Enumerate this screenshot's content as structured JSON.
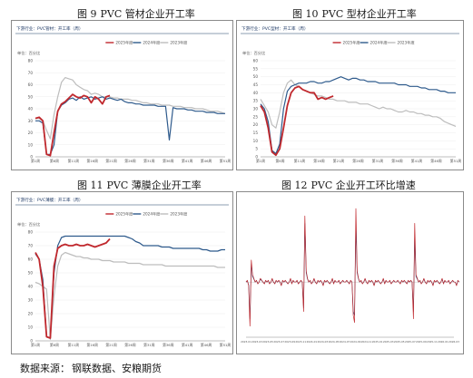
{
  "captions": [
    {
      "fig": "图 9",
      "title": "PVC 管材企业开工率"
    },
    {
      "fig": "图 10",
      "title": "PVC 型材企业开工率"
    },
    {
      "fig": "图 11",
      "title": "PVC 薄膜企业开工率"
    },
    {
      "fig": "图 12",
      "title": "PVC 企业开工环比增速"
    }
  ],
  "source": {
    "label": "数据来源：",
    "text": "钢联数据、安粮期货"
  },
  "watermark": "",
  "colors": {
    "y2025": "#c0282d",
    "y2024": "#2e5a8c",
    "y2023": "#bdbdbd"
  },
  "chart_data": [
    {
      "type": "line",
      "header": "下游行业：PVC管材：开工率（周）",
      "ylabel": "单位：百分比",
      "ylim": [
        0,
        80
      ],
      "yticks": [
        "80",
        "70",
        "60",
        "50",
        "40",
        "30",
        "20",
        "10",
        "0"
      ],
      "xticks": [
        "第1周",
        "第6周",
        "第11周",
        "第16周",
        "第21周",
        "第26周",
        "第31周",
        "第36周",
        "第41周",
        "第46周",
        "第51周"
      ],
      "xmax": 52,
      "series": [
        {
          "name": "2025年度",
          "color": "y2025",
          "values": [
            32,
            33,
            30,
            2,
            1,
            20,
            38,
            44,
            46,
            49,
            52,
            50,
            49,
            51,
            50,
            45,
            50,
            48,
            44,
            50,
            51
          ]
        },
        {
          "name": "2024年度",
          "color": "y2024",
          "values": [
            30,
            30,
            28,
            2,
            2,
            10,
            38,
            43,
            45,
            48,
            49,
            47,
            50,
            48,
            49,
            50,
            48,
            49,
            50,
            48,
            49,
            48,
            47,
            48,
            46,
            45,
            45,
            44,
            44,
            43,
            43,
            43,
            43,
            42,
            42,
            42,
            14,
            41,
            40,
            40,
            40,
            39,
            39,
            38,
            38,
            38,
            37,
            37,
            37,
            36,
            36,
            36
          ]
        },
        {
          "name": "2023年度",
          "color": "y2023",
          "values": [
            32,
            32,
            30,
            22,
            15,
            35,
            50,
            62,
            66,
            65,
            64,
            60,
            58,
            56,
            55,
            52,
            53,
            52,
            50,
            50,
            50,
            49,
            49,
            48,
            48,
            48,
            47,
            47,
            46,
            45,
            45,
            44,
            44,
            44,
            43,
            43,
            43,
            42,
            42,
            42,
            41,
            41,
            41,
            40,
            40,
            40,
            39,
            38,
            38,
            38,
            37,
            36
          ]
        }
      ]
    },
    {
      "type": "line",
      "header": "下游行业：PVC型材：开工率（周）",
      "ylabel": "单位：百分比",
      "ylim": [
        0,
        60
      ],
      "yticks": [
        "60",
        "55",
        "50",
        "45",
        "40",
        "35",
        "30",
        "25",
        "20",
        "15",
        "10",
        "5",
        "0"
      ],
      "xticks": [
        "第1周",
        "第6周",
        "第11周",
        "第16周",
        "第21周",
        "第26周",
        "第31周",
        "第36周",
        "第41周",
        "第46周",
        "第51周"
      ],
      "xmax": 52,
      "series": [
        {
          "name": "2025年度",
          "color": "y2025",
          "values": [
            32,
            28,
            18,
            3,
            1,
            5,
            18,
            32,
            40,
            43,
            44,
            42,
            41,
            40,
            40,
            36,
            37,
            36,
            37,
            38
          ]
        },
        {
          "name": "2024年度",
          "color": "y2024",
          "values": [
            33,
            30,
            22,
            4,
            2,
            8,
            30,
            41,
            44,
            45,
            46,
            46,
            46,
            47,
            47,
            46,
            46,
            47,
            47,
            48,
            49,
            50,
            49,
            48,
            49,
            49,
            48,
            48,
            47,
            47,
            47,
            46,
            46,
            46,
            46,
            46,
            45,
            45,
            45,
            44,
            44,
            44,
            43,
            43,
            42,
            42,
            42,
            41,
            41,
            40,
            40,
            40
          ]
        },
        {
          "name": "2023年度",
          "color": "y2023",
          "values": [
            36,
            32,
            28,
            20,
            18,
            28,
            40,
            46,
            48,
            45,
            44,
            42,
            41,
            40,
            39,
            38,
            38,
            37,
            36,
            36,
            35,
            35,
            35,
            34,
            34,
            34,
            33,
            33,
            33,
            32,
            31,
            30,
            31,
            30,
            30,
            29,
            28,
            28,
            29,
            28,
            28,
            27,
            27,
            26,
            26,
            25,
            25,
            24,
            22,
            21,
            20,
            19
          ]
        }
      ]
    },
    {
      "type": "line",
      "header": "下游行业：PVC薄膜：开工率（周）",
      "ylabel": "单位：百分比",
      "ylim": [
        0,
        80
      ],
      "yticks": [
        "80",
        "70",
        "60",
        "50",
        "40",
        "30",
        "20",
        "10",
        "0"
      ],
      "xticks": [
        "第1周",
        "第6周",
        "第11周",
        "第16周",
        "第21周",
        "第26周",
        "第31周",
        "第36周",
        "第41周",
        "第46周",
        "第51周"
      ],
      "xmax": 52,
      "series": [
        {
          "name": "2025年度",
          "color": "y2025",
          "values": [
            65,
            60,
            40,
            3,
            2,
            55,
            68,
            70,
            71,
            70,
            70,
            71,
            70,
            70,
            71,
            70,
            69,
            70,
            71,
            72,
            75
          ]
        },
        {
          "name": "2024年度",
          "color": "y2024",
          "values": [
            64,
            60,
            45,
            3,
            2,
            50,
            70,
            76,
            77,
            77,
            77,
            77,
            77,
            77,
            77,
            77,
            77,
            77,
            77,
            77,
            77,
            77,
            77,
            77,
            77,
            76,
            75,
            73,
            72,
            70,
            70,
            70,
            70,
            70,
            69,
            69,
            69,
            68,
            68,
            68,
            68,
            68,
            68,
            68,
            68,
            67,
            67,
            66,
            66,
            66,
            67,
            67
          ]
        },
        {
          "name": "2023年度",
          "color": "y2023",
          "values": [
            43,
            42,
            40,
            38,
            1,
            33,
            55,
            63,
            65,
            64,
            63,
            62,
            62,
            61,
            61,
            60,
            60,
            60,
            59,
            59,
            59,
            58,
            58,
            58,
            58,
            57,
            57,
            57,
            57,
            56,
            56,
            56,
            56,
            56,
            56,
            55,
            55,
            55,
            55,
            55,
            55,
            55,
            55,
            55,
            55,
            55,
            55,
            55,
            55,
            54,
            54,
            54
          ]
        }
      ]
    },
    {
      "type": "line",
      "header": "",
      "ylabel": "",
      "ylim": [
        -1.5,
        2.2
      ],
      "yticks": [],
      "xticks": [
        "2023-01",
        "2023-03",
        "2023-05",
        "2023-07",
        "2023-09",
        "2023-11",
        "2024-01",
        "2024-03",
        "2024-05",
        "2024-07",
        "2024-09",
        "2024-11",
        "2025-01",
        "2025-03",
        "2025-05",
        "2025-07",
        "2025-09",
        "2025-11",
        "2026-01",
        "2026-03"
      ],
      "xmax": 160,
      "series": [
        {
          "name": "",
          "color": "y2025",
          "values": [
            0,
            0.05,
            -0.1,
            -1.2,
            0.6,
            0.2,
            0.1,
            0,
            0.05,
            -0.05,
            0,
            0.1,
            0.05,
            0,
            -0.05,
            0.05,
            0,
            0.05,
            -0.05,
            0,
            0.1,
            0,
            -0.05,
            0.05,
            0,
            0.05,
            0,
            -0.1,
            0.05,
            0,
            0.05,
            0,
            -0.05,
            0,
            0.1,
            -0.05,
            0.05,
            0,
            0,
            0.05,
            -0.05,
            0,
            0.05,
            0,
            -0.8,
            1.8,
            0.3,
            0.1,
            0,
            0.05,
            -0.05,
            0,
            0.1,
            0,
            -0.05,
            0.05,
            0,
            0.05,
            0,
            -0.1,
            0.05,
            0,
            0.05,
            0,
            -0.05,
            0,
            0.1,
            -0.05,
            0.05,
            0,
            0,
            0.05,
            -0.05,
            0,
            0.05,
            0,
            0,
            0.05,
            0,
            -0.05,
            0.05,
            0,
            -0.9,
            -1.1,
            2.0,
            0.3,
            0.1,
            0,
            0.05,
            -0.05,
            0,
            0.1,
            0,
            -0.05,
            0.05,
            0,
            0.05,
            0,
            -0.1,
            0.05,
            0,
            0.05,
            0,
            -0.05,
            0,
            0.1,
            -0.05,
            0.05,
            0,
            0,
            0.05,
            -0.05,
            0,
            0.05,
            0,
            0,
            0.05,
            0,
            -0.05,
            0.05,
            0,
            0.05,
            0,
            -0.05,
            0.05,
            0,
            0.05,
            0,
            -1.0,
            1.6,
            0.2,
            0.1,
            0,
            0.05,
            -0.05,
            0,
            0.1,
            0,
            -0.05,
            0.05,
            0,
            0.05,
            0,
            -0.1,
            0.05,
            0,
            0.05,
            0,
            -0.05,
            0,
            0.1,
            -0.05,
            0.05,
            0,
            0,
            0.05,
            -0.05,
            0,
            0.05,
            0,
            0,
            -0.1,
            0.05,
            0
          ]
        },
        {
          "name": "",
          "color": "y2024",
          "values": [
            0,
            0.03,
            -0.08,
            -1.0,
            0.5,
            0.15,
            0.08,
            0,
            0.04,
            -0.04,
            0,
            0.08,
            0.04,
            0,
            -0.04,
            0.04,
            0,
            0.04,
            -0.04,
            0,
            0.08,
            0,
            -0.04,
            0.04,
            0,
            0.04,
            0,
            -0.08,
            0.04,
            0,
            0.04,
            0,
            -0.04,
            0,
            0.08,
            -0.04,
            0.04,
            0,
            0,
            0.04,
            -0.04,
            0,
            0.04,
            0,
            -0.7,
            1.6,
            0.25,
            0.08,
            0,
            0.04,
            -0.04,
            0,
            0.08,
            0,
            -0.04,
            0.04,
            0,
            0.04,
            0,
            -0.08,
            0.04,
            0,
            0.04,
            0,
            -0.04,
            0,
            0.08,
            -0.04,
            0.04,
            0,
            0,
            0.04,
            -0.04,
            0,
            0.04,
            0,
            0,
            0.04,
            0,
            -0.04,
            0.04,
            0,
            -0.8,
            -0.9,
            1.5,
            0.25,
            0.08,
            0,
            0.04,
            -0.04,
            0,
            0.08,
            0,
            -0.04,
            0.04,
            0,
            0.04,
            0,
            -0.08,
            0.04,
            0,
            0.04,
            0,
            -0.04,
            0,
            0.08,
            -0.04,
            0.04,
            0,
            0,
            0.04,
            -0.04,
            0,
            0.04,
            0,
            0,
            0.04,
            0,
            -0.04,
            0.04,
            0,
            0.04,
            0,
            -0.04,
            0.04,
            0,
            0.04,
            0,
            -0.8,
            1.2,
            0.15,
            0.08,
            0,
            0.04,
            -0.04,
            0,
            0.08,
            0,
            -0.04,
            0.04,
            0,
            0.04,
            0,
            -0.08,
            0.04,
            0,
            0.04,
            0,
            -0.04,
            0,
            0.08,
            -0.04,
            0.04,
            0,
            0,
            0.04,
            -0.04,
            0,
            0.04,
            0,
            0,
            -0.08,
            0.04,
            0
          ]
        }
      ]
    }
  ]
}
